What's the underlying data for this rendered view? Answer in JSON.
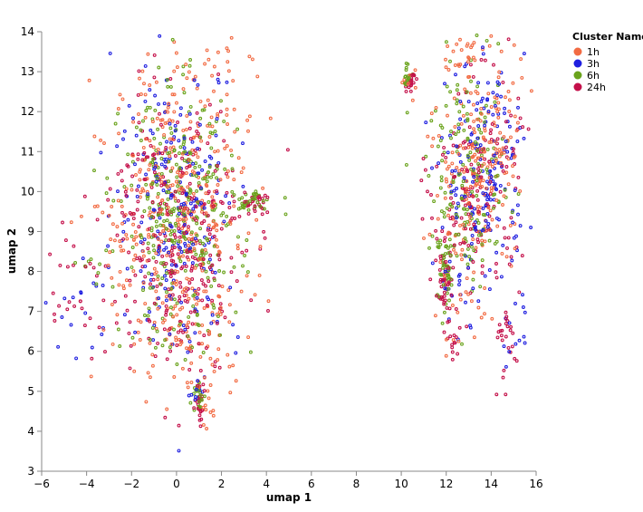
{
  "chart_data": {
    "type": "scatter",
    "xlabel": "umap 1",
    "ylabel": "umap 2",
    "xlim": [
      -6,
      16
    ],
    "ylim": [
      3,
      14
    ],
    "x_ticks": [
      -6,
      -4,
      -2,
      0,
      2,
      4,
      6,
      8,
      10,
      12,
      14,
      16
    ],
    "y_ticks": [
      3,
      4,
      5,
      6,
      7,
      8,
      9,
      10,
      11,
      12,
      13,
      14
    ],
    "grid": false,
    "legend": {
      "title": "Cluster Name",
      "placement": "top-right",
      "entries": [
        "1h",
        "3h",
        "6h",
        "24h"
      ]
    },
    "colors": {
      "1h": "#f26b43",
      "3h": "#1f1fe0",
      "6h": "#6aa31c",
      "24h": "#c4104a"
    },
    "series": [
      {
        "name": "1h",
        "regions": [
          {
            "cx": 0.2,
            "cy": 9.5,
            "sx": 1.5,
            "sy": 2.0,
            "n": 380
          },
          {
            "cx": 13.5,
            "cy": 10.8,
            "sx": 1.0,
            "sy": 1.5,
            "n": 230
          },
          {
            "cx": 0.5,
            "cy": 5.8,
            "sx": 0.9,
            "sy": 0.7,
            "n": 40
          },
          {
            "cx": 1.2,
            "cy": 4.6,
            "sx": 0.25,
            "sy": 0.4,
            "n": 15
          },
          {
            "cx": 12.3,
            "cy": 7.8,
            "sx": 0.7,
            "sy": 0.8,
            "n": 25
          },
          {
            "cx": 10.3,
            "cy": 12.8,
            "sx": 0.2,
            "sy": 0.2,
            "n": 8
          },
          {
            "cx": 13.0,
            "cy": 13.5,
            "sx": 0.5,
            "sy": 0.3,
            "n": 15
          },
          {
            "cx": -2.5,
            "cy": 9.0,
            "sx": 0.8,
            "sy": 1.5,
            "n": 30
          },
          {
            "cx": 2.5,
            "cy": 12.5,
            "sx": 0.6,
            "sy": 0.6,
            "n": 15
          }
        ]
      },
      {
        "name": "3h",
        "regions": [
          {
            "cx": 0.0,
            "cy": 9.6,
            "sx": 1.4,
            "sy": 1.8,
            "n": 230
          },
          {
            "cx": 13.8,
            "cy": 10.5,
            "sx": 0.9,
            "sy": 1.4,
            "n": 170
          },
          {
            "cx": -4.5,
            "cy": 7.3,
            "sx": 0.8,
            "sy": 0.6,
            "n": 15
          },
          {
            "cx": 12.5,
            "cy": 7.6,
            "sx": 0.6,
            "sy": 0.8,
            "n": 25
          },
          {
            "cx": 15.0,
            "cy": 6.5,
            "sx": 0.3,
            "sy": 0.5,
            "n": 12
          },
          {
            "cx": 1.0,
            "cy": 5.0,
            "sx": 0.15,
            "sy": 0.2,
            "n": 10
          }
        ]
      },
      {
        "name": "6h",
        "regions": [
          {
            "cx": 0.2,
            "cy": 9.3,
            "sx": 1.3,
            "sy": 1.6,
            "n": 330
          },
          {
            "cx": 13.0,
            "cy": 10.3,
            "sx": 0.9,
            "sy": 1.4,
            "n": 170
          },
          {
            "cx": 12.0,
            "cy": 7.9,
            "sx": 0.2,
            "sy": 0.5,
            "n": 35
          },
          {
            "cx": 10.3,
            "cy": 12.9,
            "sx": 0.15,
            "sy": 0.12,
            "n": 15
          },
          {
            "cx": 3.3,
            "cy": 9.8,
            "sx": 0.35,
            "sy": 0.15,
            "n": 30
          },
          {
            "cx": 1.0,
            "cy": 4.9,
            "sx": 0.12,
            "sy": 0.2,
            "n": 20
          },
          {
            "cx": -3.8,
            "cy": 8.0,
            "sx": 0.5,
            "sy": 0.3,
            "n": 10
          }
        ]
      },
      {
        "name": "24h",
        "regions": [
          {
            "cx": 0.0,
            "cy": 9.0,
            "sx": 1.5,
            "sy": 1.7,
            "n": 330
          },
          {
            "cx": 13.3,
            "cy": 10.0,
            "sx": 1.0,
            "sy": 1.4,
            "n": 160
          },
          {
            "cx": 11.9,
            "cy": 7.6,
            "sx": 0.2,
            "sy": 0.55,
            "n": 45
          },
          {
            "cx": 10.4,
            "cy": 12.75,
            "sx": 0.12,
            "sy": 0.15,
            "n": 20
          },
          {
            "cx": 3.5,
            "cy": 9.7,
            "sx": 0.3,
            "sy": 0.12,
            "n": 25
          },
          {
            "cx": 1.1,
            "cy": 4.8,
            "sx": 0.12,
            "sy": 0.3,
            "n": 25
          },
          {
            "cx": -4.8,
            "cy": 7.8,
            "sx": 0.7,
            "sy": 0.8,
            "n": 25
          },
          {
            "cx": 14.7,
            "cy": 6.3,
            "sx": 0.35,
            "sy": 0.5,
            "n": 25
          },
          {
            "cx": 12.3,
            "cy": 6.0,
            "sx": 0.15,
            "sy": 0.3,
            "n": 10
          }
        ]
      }
    ]
  }
}
